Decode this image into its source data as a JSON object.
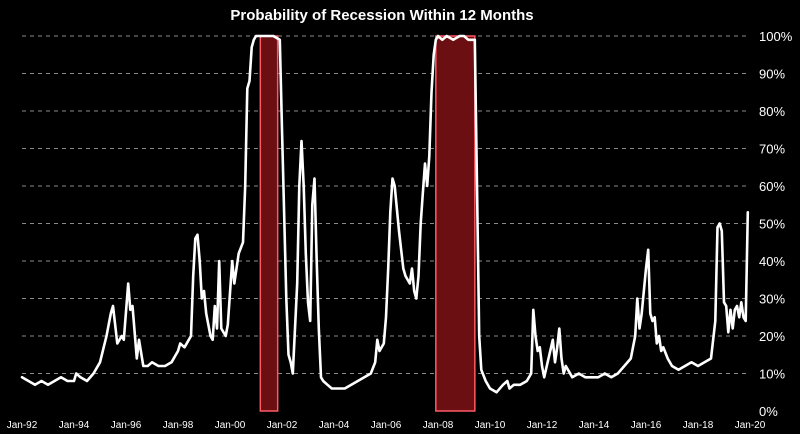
{
  "chart_data": {
    "type": "line",
    "title": "Probability of Recession Within 12 Months",
    "xlabel": "",
    "ylabel": "",
    "ylim": [
      0,
      100
    ],
    "y_unit": "%",
    "y_ticks": [
      "0%",
      "10%",
      "20%",
      "30%",
      "40%",
      "50%",
      "60%",
      "70%",
      "80%",
      "90%",
      "100%"
    ],
    "y_axis_side": "right",
    "grid": "horizontal dashed",
    "x_ticks": [
      "Jan-92",
      "Jan-94",
      "Jan-96",
      "Jan-98",
      "Jan-00",
      "Jan-02",
      "Jan-04",
      "Jan-06",
      "Jan-08",
      "Jan-10",
      "Jan-12",
      "Jan-14",
      "Jan-16",
      "Jan-18",
      "Jan-20"
    ],
    "xlim": [
      "1992-01",
      "2020-01"
    ],
    "recession_bands": [
      {
        "start": "2001-03",
        "end": "2001-11"
      },
      {
        "start": "2007-12",
        "end": "2009-06"
      }
    ],
    "colors": {
      "background": "#000000",
      "line": "#ffffff",
      "band_fill": "#6b0f12",
      "band_edge": "#ff5a64",
      "grid": "#8a8a8a"
    },
    "series": [
      {
        "points": [
          [
            "1992-01",
            9
          ],
          [
            "1992-04",
            8
          ],
          [
            "1992-07",
            7
          ],
          [
            "1992-10",
            8
          ],
          [
            "1993-01",
            7
          ],
          [
            "1993-04",
            8
          ],
          [
            "1993-07",
            9
          ],
          [
            "1993-10",
            8
          ],
          [
            "1994-01",
            8
          ],
          [
            "1994-02",
            10
          ],
          [
            "1994-04",
            9
          ],
          [
            "1994-07",
            8
          ],
          [
            "1994-10",
            10
          ],
          [
            "1995-01",
            13
          ],
          [
            "1995-04",
            20
          ],
          [
            "1995-06",
            26
          ],
          [
            "1995-07",
            28
          ],
          [
            "1995-09",
            18
          ],
          [
            "1995-11",
            20
          ],
          [
            "1995-12",
            19
          ],
          [
            "1996-02",
            34
          ],
          [
            "1996-03",
            27
          ],
          [
            "1996-04",
            28
          ],
          [
            "1996-06",
            14
          ],
          [
            "1996-07",
            19
          ],
          [
            "1996-09",
            12
          ],
          [
            "1996-11",
            12
          ],
          [
            "1997-01",
            13
          ],
          [
            "1997-04",
            12
          ],
          [
            "1997-07",
            12
          ],
          [
            "1997-10",
            13
          ],
          [
            "1998-01",
            16
          ],
          [
            "1998-02",
            18
          ],
          [
            "1998-04",
            17
          ],
          [
            "1998-06",
            19
          ],
          [
            "1998-07",
            20
          ],
          [
            "1998-08",
            36
          ],
          [
            "1998-09",
            46
          ],
          [
            "1998-10",
            47
          ],
          [
            "1998-11",
            40
          ],
          [
            "1998-12",
            30
          ],
          [
            "1999-01",
            32
          ],
          [
            "1999-02",
            26
          ],
          [
            "1999-04",
            20
          ],
          [
            "1999-05",
            19
          ],
          [
            "1999-06",
            28
          ],
          [
            "1999-07",
            22
          ],
          [
            "1999-08",
            40
          ],
          [
            "1999-09",
            22
          ],
          [
            "1999-11",
            20
          ],
          [
            "1999-12",
            23
          ],
          [
            "2000-02",
            40
          ],
          [
            "2000-03",
            34
          ],
          [
            "2000-05",
            42
          ],
          [
            "2000-07",
            45
          ],
          [
            "2000-08",
            60
          ],
          [
            "2000-09",
            86
          ],
          [
            "2000-10",
            88
          ],
          [
            "2000-11",
            97
          ],
          [
            "2000-12",
            99
          ],
          [
            "2001-01",
            100
          ],
          [
            "2001-03",
            100
          ],
          [
            "2001-06",
            100
          ],
          [
            "2001-09",
            100
          ],
          [
            "2001-12",
            99
          ],
          [
            "2002-01",
            75
          ],
          [
            "2002-02",
            52
          ],
          [
            "2002-03",
            30
          ],
          [
            "2002-04",
            15
          ],
          [
            "2002-05",
            13
          ],
          [
            "2002-06",
            10
          ],
          [
            "2002-07",
            22
          ],
          [
            "2002-08",
            34
          ],
          [
            "2002-09",
            60
          ],
          [
            "2002-10",
            72
          ],
          [
            "2002-11",
            60
          ],
          [
            "2002-12",
            42
          ],
          [
            "2003-01",
            29
          ],
          [
            "2003-02",
            24
          ],
          [
            "2003-03",
            55
          ],
          [
            "2003-04",
            62
          ],
          [
            "2003-05",
            40
          ],
          [
            "2003-06",
            22
          ],
          [
            "2003-07",
            9
          ],
          [
            "2003-08",
            8
          ],
          [
            "2003-10",
            7
          ],
          [
            "2003-12",
            6
          ],
          [
            "2004-03",
            6
          ],
          [
            "2004-06",
            6
          ],
          [
            "2004-09",
            7
          ],
          [
            "2004-12",
            8
          ],
          [
            "2005-03",
            9
          ],
          [
            "2005-06",
            10
          ],
          [
            "2005-08",
            13
          ],
          [
            "2005-09",
            19
          ],
          [
            "2005-10",
            16
          ],
          [
            "2005-12",
            18
          ],
          [
            "2006-01",
            25
          ],
          [
            "2006-02",
            38
          ],
          [
            "2006-03",
            53
          ],
          [
            "2006-04",
            62
          ],
          [
            "2006-05",
            60
          ],
          [
            "2006-07",
            48
          ],
          [
            "2006-09",
            38
          ],
          [
            "2006-10",
            36
          ],
          [
            "2006-12",
            34
          ],
          [
            "2007-01",
            38
          ],
          [
            "2007-02",
            32
          ],
          [
            "2007-03",
            30
          ],
          [
            "2007-04",
            36
          ],
          [
            "2007-05",
            50
          ],
          [
            "2007-06",
            58
          ],
          [
            "2007-07",
            66
          ],
          [
            "2007-08",
            60
          ],
          [
            "2007-09",
            68
          ],
          [
            "2007-10",
            85
          ],
          [
            "2007-11",
            95
          ],
          [
            "2007-12",
            99
          ],
          [
            "2008-01",
            100
          ],
          [
            "2008-03",
            99
          ],
          [
            "2008-05",
            100
          ],
          [
            "2008-08",
            99
          ],
          [
            "2008-11",
            100
          ],
          [
            "2009-01",
            100
          ],
          [
            "2009-03",
            99
          ],
          [
            "2009-06",
            99
          ],
          [
            "2009-07",
            60
          ],
          [
            "2009-08",
            20
          ],
          [
            "2009-09",
            11
          ],
          [
            "2009-11",
            8
          ],
          [
            "2010-01",
            6
          ],
          [
            "2010-04",
            5
          ],
          [
            "2010-07",
            7
          ],
          [
            "2010-09",
            8
          ],
          [
            "2010-10",
            6
          ],
          [
            "2010-12",
            7
          ],
          [
            "2011-03",
            7
          ],
          [
            "2011-06",
            8
          ],
          [
            "2011-08",
            10
          ],
          [
            "2011-09",
            27
          ],
          [
            "2011-10",
            20
          ],
          [
            "2011-11",
            16
          ],
          [
            "2011-12",
            17
          ],
          [
            "2012-01",
            12
          ],
          [
            "2012-02",
            9
          ],
          [
            "2012-04",
            14
          ],
          [
            "2012-06",
            19
          ],
          [
            "2012-07",
            13
          ],
          [
            "2012-08",
            17
          ],
          [
            "2012-09",
            22
          ],
          [
            "2012-10",
            14
          ],
          [
            "2012-11",
            10
          ],
          [
            "2012-12",
            12
          ],
          [
            "2013-03",
            9
          ],
          [
            "2013-06",
            10
          ],
          [
            "2013-09",
            9
          ],
          [
            "2013-12",
            9
          ],
          [
            "2014-03",
            9
          ],
          [
            "2014-06",
            10
          ],
          [
            "2014-09",
            9
          ],
          [
            "2014-12",
            10
          ],
          [
            "2015-03",
            12
          ],
          [
            "2015-06",
            14
          ],
          [
            "2015-08",
            20
          ],
          [
            "2015-09",
            30
          ],
          [
            "2015-10",
            22
          ],
          [
            "2015-11",
            26
          ],
          [
            "2016-01",
            38
          ],
          [
            "2016-02",
            43
          ],
          [
            "2016-03",
            26
          ],
          [
            "2016-04",
            24
          ],
          [
            "2016-05",
            25
          ],
          [
            "2016-06",
            18
          ],
          [
            "2016-07",
            20
          ],
          [
            "2016-08",
            16
          ],
          [
            "2016-09",
            17
          ],
          [
            "2016-11",
            14
          ],
          [
            "2017-01",
            12
          ],
          [
            "2017-04",
            11
          ],
          [
            "2017-07",
            12
          ],
          [
            "2017-10",
            13
          ],
          [
            "2018-01",
            12
          ],
          [
            "2018-04",
            13
          ],
          [
            "2018-07",
            14
          ],
          [
            "2018-09",
            24
          ],
          [
            "2018-10",
            49
          ],
          [
            "2018-11",
            50
          ],
          [
            "2018-12",
            48
          ],
          [
            "2019-01",
            29
          ],
          [
            "2019-02",
            28
          ],
          [
            "2019-03",
            21
          ],
          [
            "2019-04",
            27
          ],
          [
            "2019-05",
            22
          ],
          [
            "2019-06",
            27
          ],
          [
            "2019-07",
            28
          ],
          [
            "2019-08",
            25
          ],
          [
            "2019-09",
            29
          ],
          [
            "2019-10",
            25
          ],
          [
            "2019-11",
            24
          ],
          [
            "2019-12",
            53
          ]
        ]
      }
    ]
  }
}
